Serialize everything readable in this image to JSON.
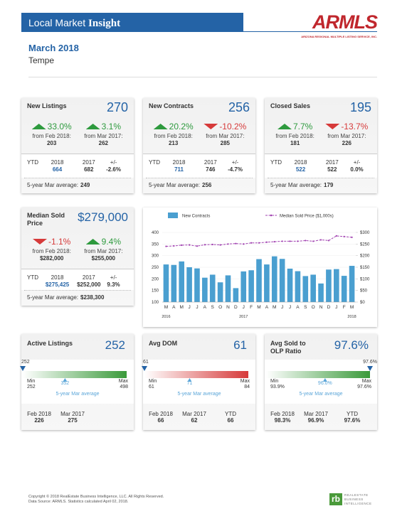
{
  "header": {
    "title": "Local Market",
    "title_bold": "Insight",
    "logo": "ARMLS",
    "logo_sub": "ARIZONA REGIONAL MULTIPLE LISTING SERVICE, INC.",
    "period": "March 2018",
    "area": "Tempe"
  },
  "stat_cards": [
    {
      "title": "New Listings",
      "value": "270",
      "changes": [
        {
          "pct": "33.0%",
          "direction": "up",
          "label": "from Feb 2018:",
          "base": "203"
        },
        {
          "pct": "3.1%",
          "direction": "up",
          "label": "from Mar 2017:",
          "base": "262"
        }
      ],
      "ytd": {
        "header": [
          "YTD",
          "2018",
          "2017",
          "+/-"
        ],
        "row": [
          "664",
          "682",
          "-2.6%"
        ]
      },
      "average": {
        "label": "5-year Mar average:",
        "value": "249"
      }
    },
    {
      "title": "New Contracts",
      "value": "256",
      "changes": [
        {
          "pct": "20.2%",
          "direction": "up",
          "label": "from Feb 2018:",
          "base": "213"
        },
        {
          "pct": "-10.2%",
          "direction": "down",
          "label": "from Mar 2017:",
          "base": "285"
        }
      ],
      "ytd": {
        "header": [
          "YTD",
          "2018",
          "2017",
          "+/-"
        ],
        "row": [
          "711",
          "746",
          "-4.7%"
        ]
      },
      "average": {
        "label": "5-year Mar average:",
        "value": "256"
      }
    },
    {
      "title": "Closed Sales",
      "value": "195",
      "changes": [
        {
          "pct": "7.7%",
          "direction": "up",
          "label": "from Feb 2018:",
          "base": "181"
        },
        {
          "pct": "-13.7%",
          "direction": "down",
          "label": "from Mar 2017:",
          "base": "226"
        }
      ],
      "ytd": {
        "header": [
          "YTD",
          "2018",
          "2017",
          "+/-"
        ],
        "row": [
          "522",
          "522",
          "0.0%"
        ]
      },
      "average": {
        "label": "5-year Mar average:",
        "value": "179"
      }
    }
  ],
  "median_card": {
    "title": "Median Sold Price",
    "value": "$279,000",
    "changes": [
      {
        "pct": "-1.1%",
        "direction": "down",
        "label": "from Feb 2018:",
        "base": "$282,000"
      },
      {
        "pct": "9.4%",
        "direction": "up",
        "label": "from Mar 2017:",
        "base": "$255,000"
      }
    ],
    "ytd": {
      "header": [
        "YTD",
        "2018",
        "2017",
        "+/-"
      ],
      "row": [
        "$275,425",
        "$252,000",
        "9.3%"
      ]
    },
    "average": {
      "label": "5-year Mar average:",
      "value": "$238,300"
    }
  },
  "chart_data": {
    "type": "combo",
    "categories": [
      "M",
      "A",
      "M",
      "J",
      "J",
      "A",
      "S",
      "O",
      "N",
      "D",
      "J",
      "F",
      "M",
      "A",
      "M",
      "J",
      "J",
      "A",
      "S",
      "O",
      "N",
      "D",
      "J",
      "F",
      "M"
    ],
    "year_labels": [
      "2016",
      "2017",
      "2018"
    ],
    "series": [
      {
        "name": "New Contracts",
        "type": "bar",
        "color": "#4a9fd0",
        "values": [
          262,
          260,
          275,
          250,
          245,
          205,
          218,
          185,
          215,
          160,
          232,
          237,
          285,
          262,
          297,
          286,
          244,
          233,
          212,
          218,
          180,
          240,
          242,
          213,
          256
        ]
      },
      {
        "name": "Median Sold Price ($1,000s)",
        "type": "line",
        "axis": "y2",
        "color": "#a040b0",
        "values": [
          240,
          242,
          245,
          246,
          241,
          247,
          248,
          246,
          250,
          252,
          250,
          255,
          255,
          258,
          260,
          262,
          262,
          262,
          265,
          262,
          268,
          265,
          285,
          282,
          279
        ]
      }
    ],
    "ylim": [
      100,
      400
    ],
    "yticks": [
      100,
      150,
      200,
      250,
      300,
      350,
      400
    ],
    "y2lim": [
      0,
      300
    ],
    "y2ticks": [
      {
        "value": 0,
        "label": "$0"
      },
      {
        "value": 50,
        "label": "$50"
      },
      {
        "value": 100,
        "label": "$100"
      },
      {
        "value": 150,
        "label": "$150"
      },
      {
        "value": 200,
        "label": "$200"
      },
      {
        "value": 250,
        "label": "$250"
      },
      {
        "value": 300,
        "label": "$300"
      }
    ],
    "grid": true
  },
  "gauge_cards": [
    {
      "title": "Active Listings",
      "value": "252",
      "color": "#3a9a3a",
      "gauge": {
        "current": 252,
        "min": 252,
        "max": 498,
        "average": 352,
        "min_label": "Min",
        "max_label": "Max",
        "average_label": "5-year Mar average"
      },
      "periods": [
        {
          "label": "Feb 2018",
          "value": "226"
        },
        {
          "label": "Mar 2017",
          "value": "275"
        }
      ]
    },
    {
      "title": "Avg DOM",
      "value": "61",
      "color": "#d63a3a",
      "gauge": {
        "current": 61,
        "min": 61,
        "max": 84,
        "average": 71,
        "min_label": "Min",
        "max_label": "Max",
        "average_label": "5-year Mar average"
      },
      "periods": [
        {
          "label": "Feb 2018",
          "value": "66"
        },
        {
          "label": "Mar 2017",
          "value": "62"
        },
        {
          "label": "YTD",
          "value": "66"
        }
      ]
    },
    {
      "title": "Avg Sold to OLP Ratio",
      "value": "97.6%",
      "color": "#3a9a3a",
      "gauge": {
        "current": {
          "value": 97.6,
          "label": "97.6%"
        },
        "min": {
          "value": 93.9,
          "label": "93.9%"
        },
        "max": {
          "value": 97.6,
          "label": "97.6%"
        },
        "average": {
          "value": 96.0,
          "label": "96.0%"
        },
        "min_label": "Min",
        "max_label": "Max",
        "average_label": "5-year Mar average"
      },
      "periods": [
        {
          "label": "Feb 2018",
          "value": "98.3%"
        },
        {
          "label": "Mar 2017",
          "value": "96.9%"
        },
        {
          "label": "YTD",
          "value": "97.6%"
        }
      ]
    }
  ],
  "footer": {
    "copyright": "Copyright © 2018 RealEstate Business Intelligence, LLC. All Rights Reserved.",
    "source": "Data Source: ARMLS. Statistics calculated April 02, 2018.",
    "logo": "rb",
    "logo_text": "REALESTATE BUSINESS INTELLIGENCE"
  }
}
